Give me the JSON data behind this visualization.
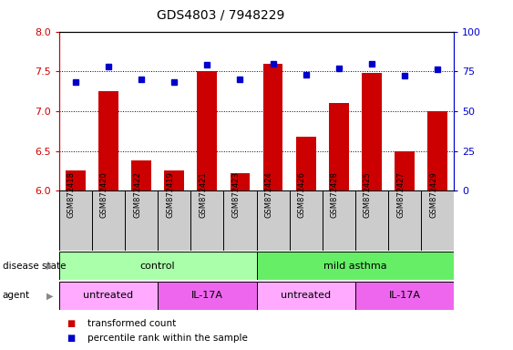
{
  "title": "GDS4803 / 7948229",
  "samples": [
    "GSM872418",
    "GSM872420",
    "GSM872422",
    "GSM872419",
    "GSM872421",
    "GSM872423",
    "GSM872424",
    "GSM872426",
    "GSM872428",
    "GSM872425",
    "GSM872427",
    "GSM872429"
  ],
  "bar_values": [
    6.25,
    7.25,
    6.38,
    6.25,
    7.5,
    6.22,
    7.6,
    6.68,
    7.1,
    7.48,
    6.5,
    7.0
  ],
  "dot_values": [
    68,
    78,
    70,
    68,
    79,
    70,
    80,
    73,
    77,
    80,
    72,
    76
  ],
  "ylim_left": [
    6,
    8
  ],
  "ylim_right": [
    0,
    100
  ],
  "yticks_left": [
    6,
    6.5,
    7,
    7.5,
    8
  ],
  "yticks_right": [
    0,
    25,
    50,
    75,
    100
  ],
  "bar_color": "#cc0000",
  "dot_color": "#0000cc",
  "bar_width": 0.6,
  "disease_state_groups": [
    {
      "label": "control",
      "start": 0,
      "end": 6,
      "color": "#aaffaa"
    },
    {
      "label": "mild asthma",
      "start": 6,
      "end": 12,
      "color": "#66ee66"
    }
  ],
  "agent_groups": [
    {
      "label": "untreated",
      "start": 0,
      "end": 3,
      "color": "#ffaaff"
    },
    {
      "label": "IL-17A",
      "start": 3,
      "end": 6,
      "color": "#ee66ee"
    },
    {
      "label": "untreated",
      "start": 6,
      "end": 9,
      "color": "#ffaaff"
    },
    {
      "label": "IL-17A",
      "start": 9,
      "end": 12,
      "color": "#ee66ee"
    }
  ],
  "legend_items": [
    {
      "label": "transformed count",
      "color": "#cc0000"
    },
    {
      "label": "percentile rank within the sample",
      "color": "#0000cc"
    }
  ],
  "tick_color_left": "#cc0000",
  "tick_color_right": "#0000cc",
  "sample_box_color": "#cccccc",
  "title_fontsize": 10
}
